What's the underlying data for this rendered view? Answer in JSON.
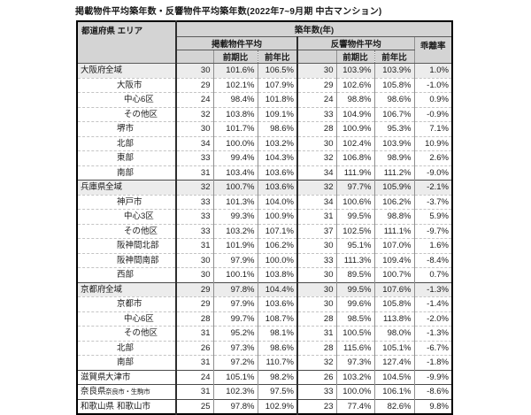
{
  "title": "掲載物件平均築年数・反響物件平均築年数(2022年7~9月期 中古マンション)",
  "colors": {
    "header_bg": "#d4d4d4",
    "shaded_row_bg": "#ececec",
    "table_border": "#000000"
  },
  "table": {
    "headers": {
      "prefecture_area": "都道府県 エリア",
      "age_years": "築年数(年)",
      "listed_avg": "掲載物件平均",
      "response_avg": "反響物件平均",
      "divergence": "乖離率",
      "qoq": "前期比",
      "yoy": "前年比"
    }
  },
  "chart_data": {
    "type": "table",
    "title": "掲載物件平均築年数・反響物件平均築年数(2022年7~9月期 中古マンション)",
    "columns": [
      "都道府県",
      "エリア",
      "掲載物件平均 築年数(年)",
      "掲載 前期比",
      "掲載 前年比",
      "反響物件平均 築年数(年)",
      "反響 前期比",
      "反響 前年比",
      "乖離率"
    ],
    "rows": [
      {
        "pref": "大阪府",
        "area": "全域",
        "indent": 1,
        "group_start": true,
        "shaded": true,
        "values": [
          "30",
          "101.6%",
          "106.5%",
          "30",
          "103.9%",
          "103.9%",
          "1.0%"
        ]
      },
      {
        "pref": "",
        "area": "大阪市",
        "indent": 2,
        "values": [
          "29",
          "102.1%",
          "107.9%",
          "29",
          "102.6%",
          "105.8%",
          "-1.0%"
        ]
      },
      {
        "pref": "",
        "area": "中心6区",
        "indent": 3,
        "values": [
          "24",
          "98.4%",
          "101.8%",
          "24",
          "98.8%",
          "98.6%",
          "0.9%"
        ]
      },
      {
        "pref": "",
        "area": "その他区",
        "indent": 3,
        "values": [
          "32",
          "103.8%",
          "109.1%",
          "33",
          "104.9%",
          "106.7%",
          "-0.9%"
        ]
      },
      {
        "pref": "",
        "area": "堺市",
        "indent": 2,
        "values": [
          "30",
          "101.7%",
          "98.6%",
          "28",
          "100.9%",
          "95.3%",
          "7.1%"
        ]
      },
      {
        "pref": "",
        "area": "北部",
        "indent": 2,
        "values": [
          "34",
          "100.0%",
          "103.2%",
          "30",
          "102.4%",
          "103.9%",
          "10.9%"
        ]
      },
      {
        "pref": "",
        "area": "東部",
        "indent": 2,
        "values": [
          "33",
          "99.4%",
          "104.3%",
          "32",
          "106.8%",
          "98.9%",
          "2.6%"
        ]
      },
      {
        "pref": "",
        "area": "南部",
        "indent": 2,
        "values": [
          "31",
          "103.4%",
          "103.6%",
          "34",
          "111.9%",
          "111.2%",
          "-9.0%"
        ]
      },
      {
        "pref": "兵庫県",
        "area": "全域",
        "indent": 1,
        "group_start": true,
        "shaded": true,
        "values": [
          "32",
          "100.7%",
          "103.6%",
          "32",
          "97.7%",
          "105.9%",
          "-2.1%"
        ]
      },
      {
        "pref": "",
        "area": "神戸市",
        "indent": 2,
        "values": [
          "33",
          "101.3%",
          "104.0%",
          "34",
          "100.6%",
          "106.2%",
          "-3.7%"
        ]
      },
      {
        "pref": "",
        "area": "中心3区",
        "indent": 3,
        "values": [
          "33",
          "99.3%",
          "100.9%",
          "31",
          "99.5%",
          "98.8%",
          "5.9%"
        ]
      },
      {
        "pref": "",
        "area": "その他区",
        "indent": 3,
        "values": [
          "33",
          "103.2%",
          "107.1%",
          "37",
          "102.5%",
          "111.1%",
          "-9.7%"
        ]
      },
      {
        "pref": "",
        "area": "阪神間北部",
        "indent": 2,
        "values": [
          "31",
          "101.9%",
          "106.2%",
          "30",
          "95.1%",
          "107.0%",
          "1.6%"
        ]
      },
      {
        "pref": "",
        "area": "阪神間南部",
        "indent": 2,
        "values": [
          "30",
          "97.9%",
          "100.0%",
          "33",
          "111.3%",
          "109.4%",
          "-8.4%"
        ]
      },
      {
        "pref": "",
        "area": "西部",
        "indent": 2,
        "values": [
          "30",
          "100.1%",
          "103.8%",
          "30",
          "89.5%",
          "100.7%",
          "0.7%"
        ]
      },
      {
        "pref": "京都府",
        "area": "全域",
        "indent": 1,
        "group_start": true,
        "shaded": true,
        "values": [
          "29",
          "97.8%",
          "104.4%",
          "30",
          "99.5%",
          "107.6%",
          "-1.3%"
        ]
      },
      {
        "pref": "",
        "area": "京都市",
        "indent": 2,
        "values": [
          "29",
          "97.9%",
          "103.6%",
          "30",
          "99.6%",
          "105.8%",
          "-1.4%"
        ]
      },
      {
        "pref": "",
        "area": "中心6区",
        "indent": 3,
        "values": [
          "28",
          "99.7%",
          "108.7%",
          "28",
          "98.5%",
          "113.8%",
          "-2.0%"
        ]
      },
      {
        "pref": "",
        "area": "その他区",
        "indent": 3,
        "values": [
          "31",
          "95.2%",
          "98.1%",
          "31",
          "100.5%",
          "98.0%",
          "-1.3%"
        ]
      },
      {
        "pref": "",
        "area": "北部",
        "indent": 2,
        "values": [
          "26",
          "97.3%",
          "98.6%",
          "28",
          "115.6%",
          "105.1%",
          "-6.7%"
        ]
      },
      {
        "pref": "",
        "area": "南部",
        "indent": 2,
        "values": [
          "31",
          "97.2%",
          "110.7%",
          "32",
          "97.3%",
          "127.4%",
          "-1.8%"
        ]
      },
      {
        "pref": "滋賀県",
        "area": "大津市",
        "indent": 1,
        "group_start": true,
        "values": [
          "24",
          "105.1%",
          "98.2%",
          "26",
          "103.2%",
          "104.5%",
          "-9.9%"
        ]
      },
      {
        "pref": "奈良県",
        "area": "奈良市・生駒市",
        "indent": 1,
        "group_start": true,
        "small": true,
        "values": [
          "31",
          "102.3%",
          "97.5%",
          "33",
          "100.0%",
          "106.1%",
          "-8.6%"
        ]
      },
      {
        "pref": "和歌山県",
        "area": "和歌山市",
        "indent": 2,
        "group_start": true,
        "values": [
          "25",
          "97.8%",
          "102.9%",
          "23",
          "77.4%",
          "82.6%",
          "9.8%"
        ]
      }
    ]
  }
}
